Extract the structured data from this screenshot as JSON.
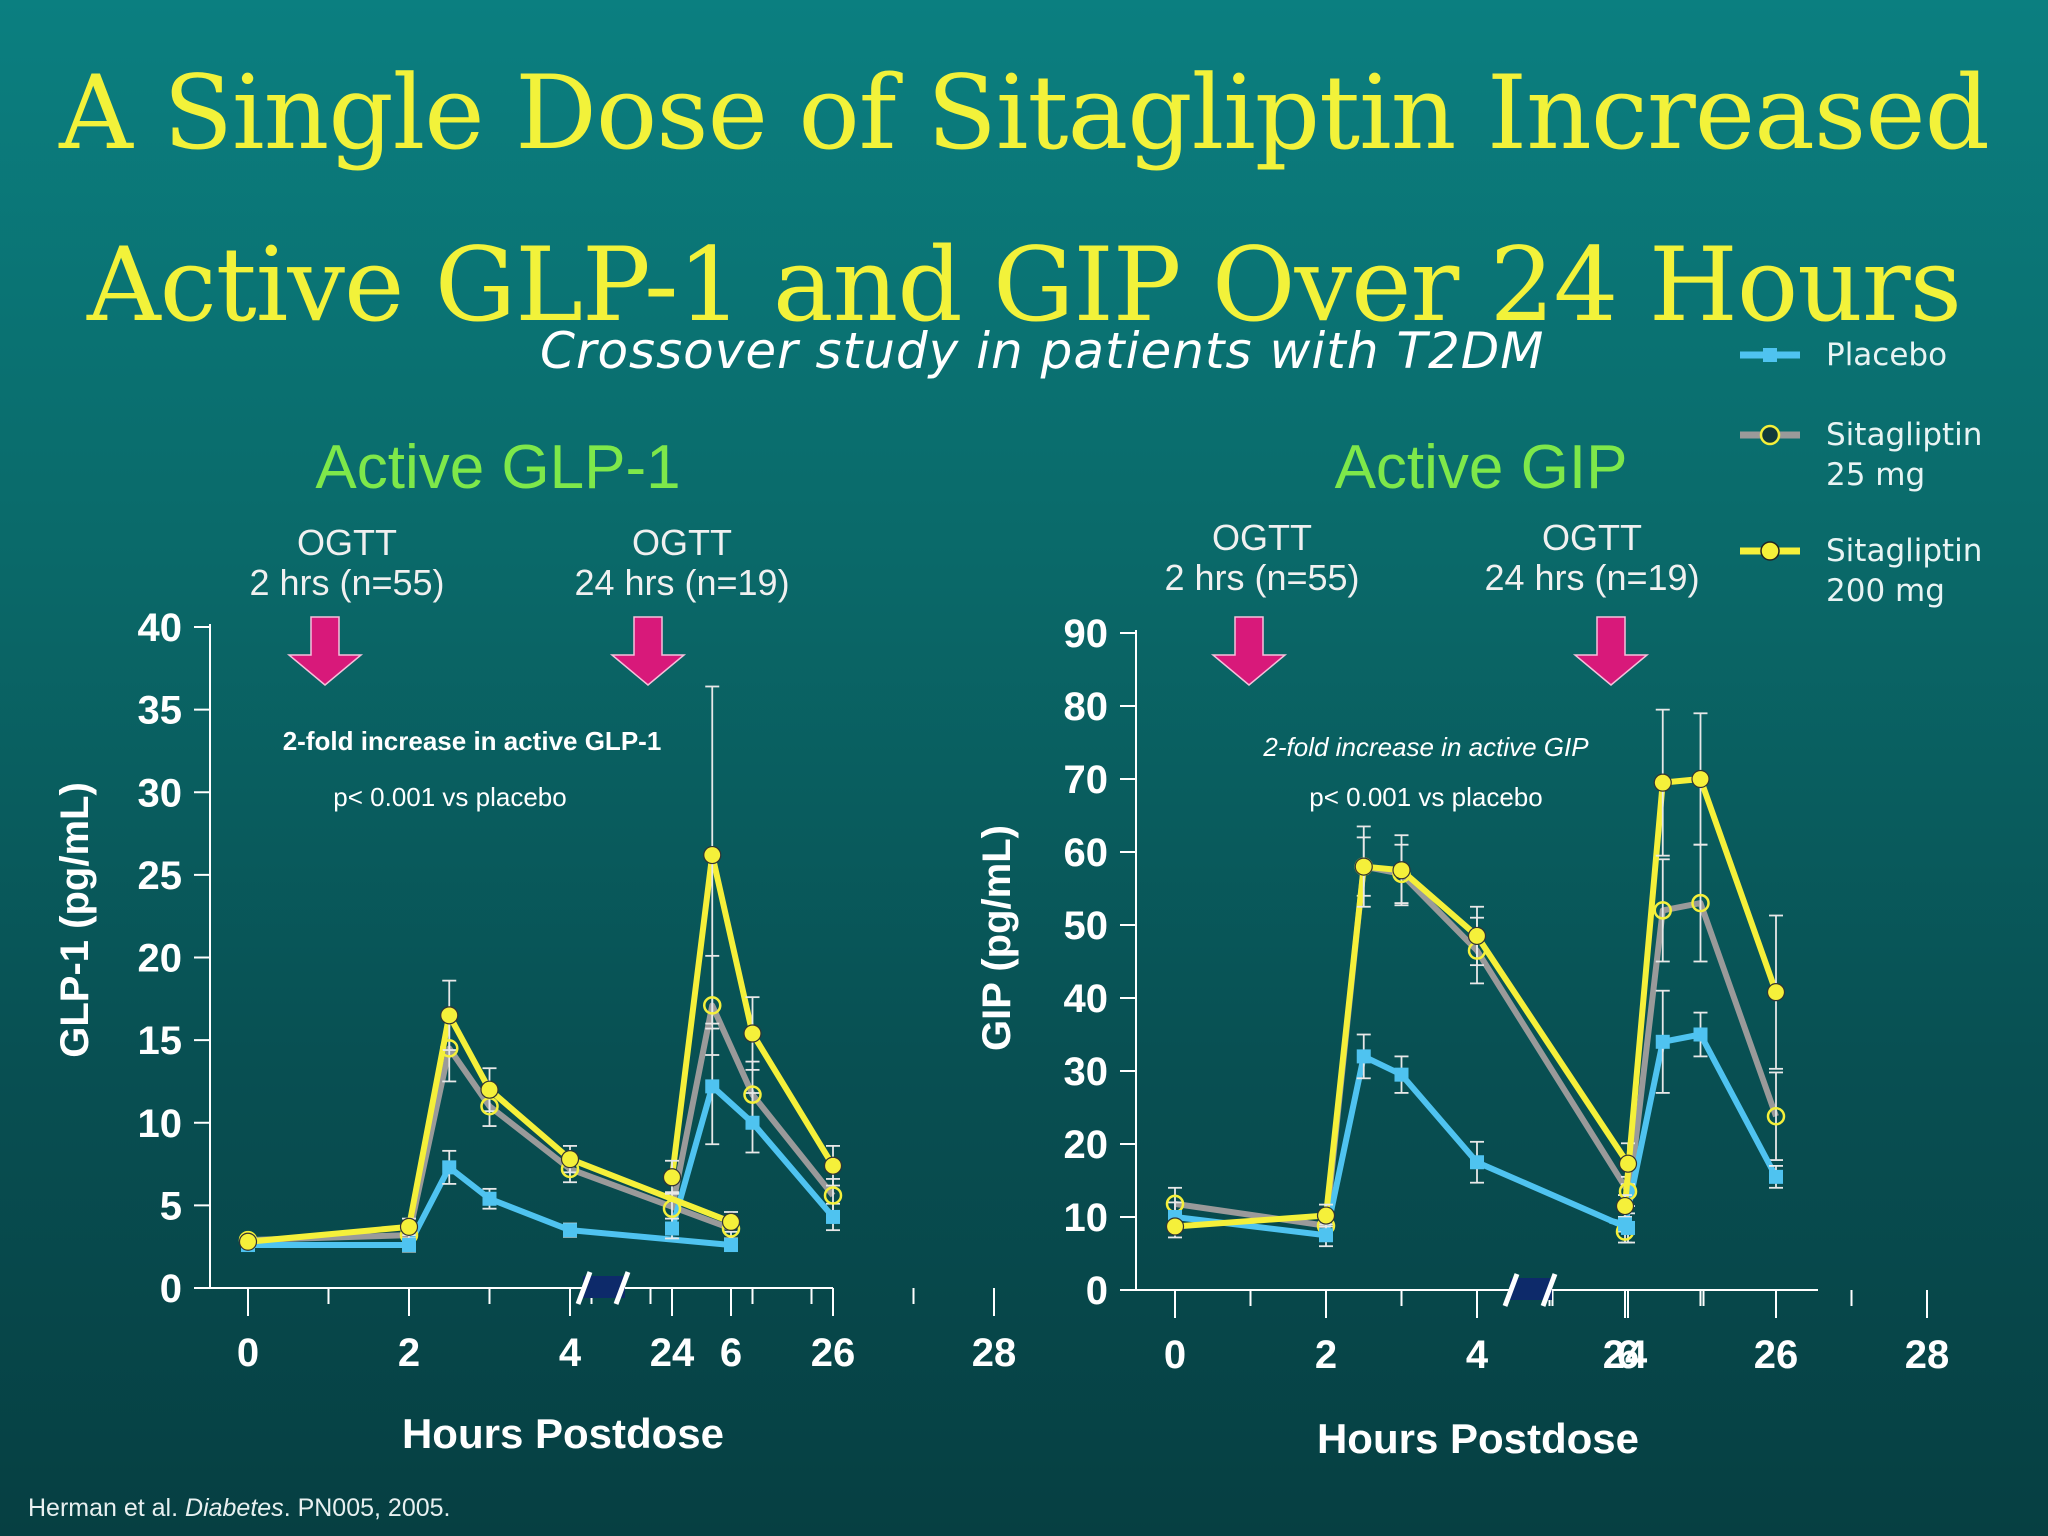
{
  "slide": {
    "title_line1": "A Single Dose of Sitagliptin Increased",
    "title_line2": "Active GLP-1 and GIP Over 24 Hours",
    "subtitle": "Crossover study in patients with T2DM",
    "footer_authors": "Herman et al. ",
    "footer_journal": "Diabetes",
    "footer_rest": ". PN005, 2005."
  },
  "legend": [
    {
      "name": "Placebo",
      "lines": [
        "Placebo"
      ],
      "color": "#4fc3f0",
      "marker": "square"
    },
    {
      "name": "Sitagliptin 25 mg",
      "lines": [
        "Sitagliptin",
        "25 mg"
      ],
      "color": "#9a9a9a",
      "marker": "open-circle"
    },
    {
      "name": "Sitagliptin 200 mg",
      "lines": [
        "Sitagliptin",
        "200 mg"
      ],
      "color": "#f5f03a",
      "marker": "filled-circle"
    }
  ],
  "colors": {
    "title": "#f2f23a",
    "panel_title": "#7ee84a",
    "arrow": "#d8197a",
    "axis_break": "#0d2a6a"
  },
  "chart_data": [
    {
      "type": "line",
      "title": "Active GLP-1",
      "xlabel": "Hours Postdose",
      "ylabel": "GLP-1 (pg/mL)",
      "ylim": [
        0,
        40
      ],
      "yticks": [
        0,
        5,
        10,
        15,
        20,
        25,
        30,
        35,
        40
      ],
      "xticks": [
        0,
        2,
        4,
        6,
        24,
        26,
        28
      ],
      "axis_break": "between 6 and 24",
      "annotations": [
        {
          "lines": [
            "OGTT",
            "2 hrs (n=55)"
          ],
          "arrow": true
        },
        {
          "lines": [
            "OGTT",
            "24 hrs (n=19)"
          ],
          "arrow": true
        },
        {
          "text": "2-fold increase in active GLP-1",
          "bold": true,
          "italic": false
        },
        {
          "text": "p< 0.001 vs placebo",
          "bold": false,
          "italic": false
        }
      ],
      "series": [
        {
          "name": "Placebo",
          "segments": [
            {
              "x": [
                0,
                2,
                2.5,
                3,
                4,
                6
              ],
              "y": [
                2.6,
                2.6,
                7.3,
                5.4,
                3.5,
                2.6
              ],
              "err": [
                0.3,
                0.4,
                1.0,
                0.6,
                0.4,
                0.3
              ]
            },
            {
              "x": [
                24,
                24.5,
                25,
                26
              ],
              "y": [
                3.6,
                12.2,
                10.0,
                4.3
              ],
              "err": [
                0.6,
                3.5,
                1.8,
                0.8
              ]
            }
          ]
        },
        {
          "name": "Sitagliptin 25 mg",
          "segments": [
            {
              "x": [
                0,
                2,
                2.5,
                3,
                4,
                6
              ],
              "y": [
                2.9,
                3.2,
                14.5,
                11.0,
                7.2,
                3.6
              ],
              "err": [
                0.3,
                0.5,
                2.0,
                1.2,
                0.8,
                0.6
              ]
            },
            {
              "x": [
                24,
                24.5,
                25,
                26
              ],
              "y": [
                4.8,
                17.1,
                11.7,
                5.6
              ],
              "err": [
                1.0,
                3.0,
                2.0,
                1.0
              ]
            }
          ]
        },
        {
          "name": "Sitagliptin 200 mg",
          "segments": [
            {
              "x": [
                0,
                2,
                2.5,
                3,
                4,
                6
              ],
              "y": [
                2.8,
                3.7,
                16.5,
                12.0,
                7.8,
                4.0
              ],
              "err": [
                0.3,
                0.5,
                2.1,
                1.3,
                0.8,
                0.6
              ]
            },
            {
              "x": [
                24,
                24.5,
                25,
                26
              ],
              "y": [
                6.7,
                26.2,
                15.4,
                7.4
              ],
              "err": [
                1.0,
                10.2,
                2.2,
                1.2
              ]
            }
          ]
        }
      ]
    },
    {
      "type": "line",
      "title": "Active GIP",
      "xlabel": "Hours Postdose",
      "ylabel": "GIP (pg/mL)",
      "ylim": [
        0,
        90
      ],
      "yticks": [
        0,
        10,
        20,
        30,
        40,
        50,
        60,
        70,
        80,
        90
      ],
      "xticks": [
        0,
        2,
        4,
        6,
        24,
        26,
        28
      ],
      "axis_break": "between 6 and 24",
      "annotations": [
        {
          "lines": [
            "OGTT",
            "2 hrs (n=55)"
          ],
          "arrow": true
        },
        {
          "lines": [
            "OGTT",
            "24 hrs (n=19)"
          ],
          "arrow": true
        },
        {
          "text": "2-fold increase in active GIP",
          "bold": false,
          "italic": true
        },
        {
          "text": "p< 0.001 vs placebo",
          "bold": false,
          "italic": false
        }
      ],
      "series": [
        {
          "name": "Placebo",
          "segments": [
            {
              "x": [
                0,
                2,
                2.5,
                3,
                4,
                6
              ],
              "y": [
                10.0,
                7.5,
                32.0,
                29.5,
                17.5,
                8.5
              ],
              "err": [
                2.0,
                1.5,
                3.0,
                2.5,
                2.8,
                2.0
              ]
            },
            {
              "x": [
                23.8,
                24,
                24.5,
                25,
                26
              ],
              "y": [
                9.5,
                9.0,
                34.0,
                35.0,
                15.5
              ],
              "err": [
                0,
                1.0,
                7.0,
                3.0,
                1.5
              ]
            }
          ]
        },
        {
          "name": "Sitagliptin 25 mg",
          "segments": [
            {
              "x": [
                0,
                2,
                2.5,
                3,
                4,
                6
              ],
              "y": [
                11.8,
                8.8,
                58.0,
                57.0,
                46.5,
                13.5
              ],
              "err": [
                2.2,
                1.5,
                4.0,
                4.0,
                4.5,
                2.0
              ]
            },
            {
              "x": [
                24,
                24.5,
                25,
                26
              ],
              "y": [
                8.0,
                52.0,
                53.0,
                23.8
              ],
              "err": [
                1.5,
                7.0,
                8.0,
                6.0
              ]
            }
          ]
        },
        {
          "name": "Sitagliptin 200 mg",
          "segments": [
            {
              "x": [
                0,
                2,
                2.5,
                3,
                4,
                6
              ],
              "y": [
                8.7,
                10.2,
                58.0,
                57.5,
                48.5,
                17.3
              ],
              "err": [
                1.5,
                1.5,
                5.5,
                4.8,
                4.0,
                2.8
              ]
            },
            {
              "x": [
                24,
                24.5,
                25,
                26
              ],
              "y": [
                11.5,
                69.5,
                70.0,
                40.8
              ],
              "err": [
                1.5,
                10.0,
                9.0,
                10.5
              ]
            }
          ]
        }
      ]
    }
  ]
}
